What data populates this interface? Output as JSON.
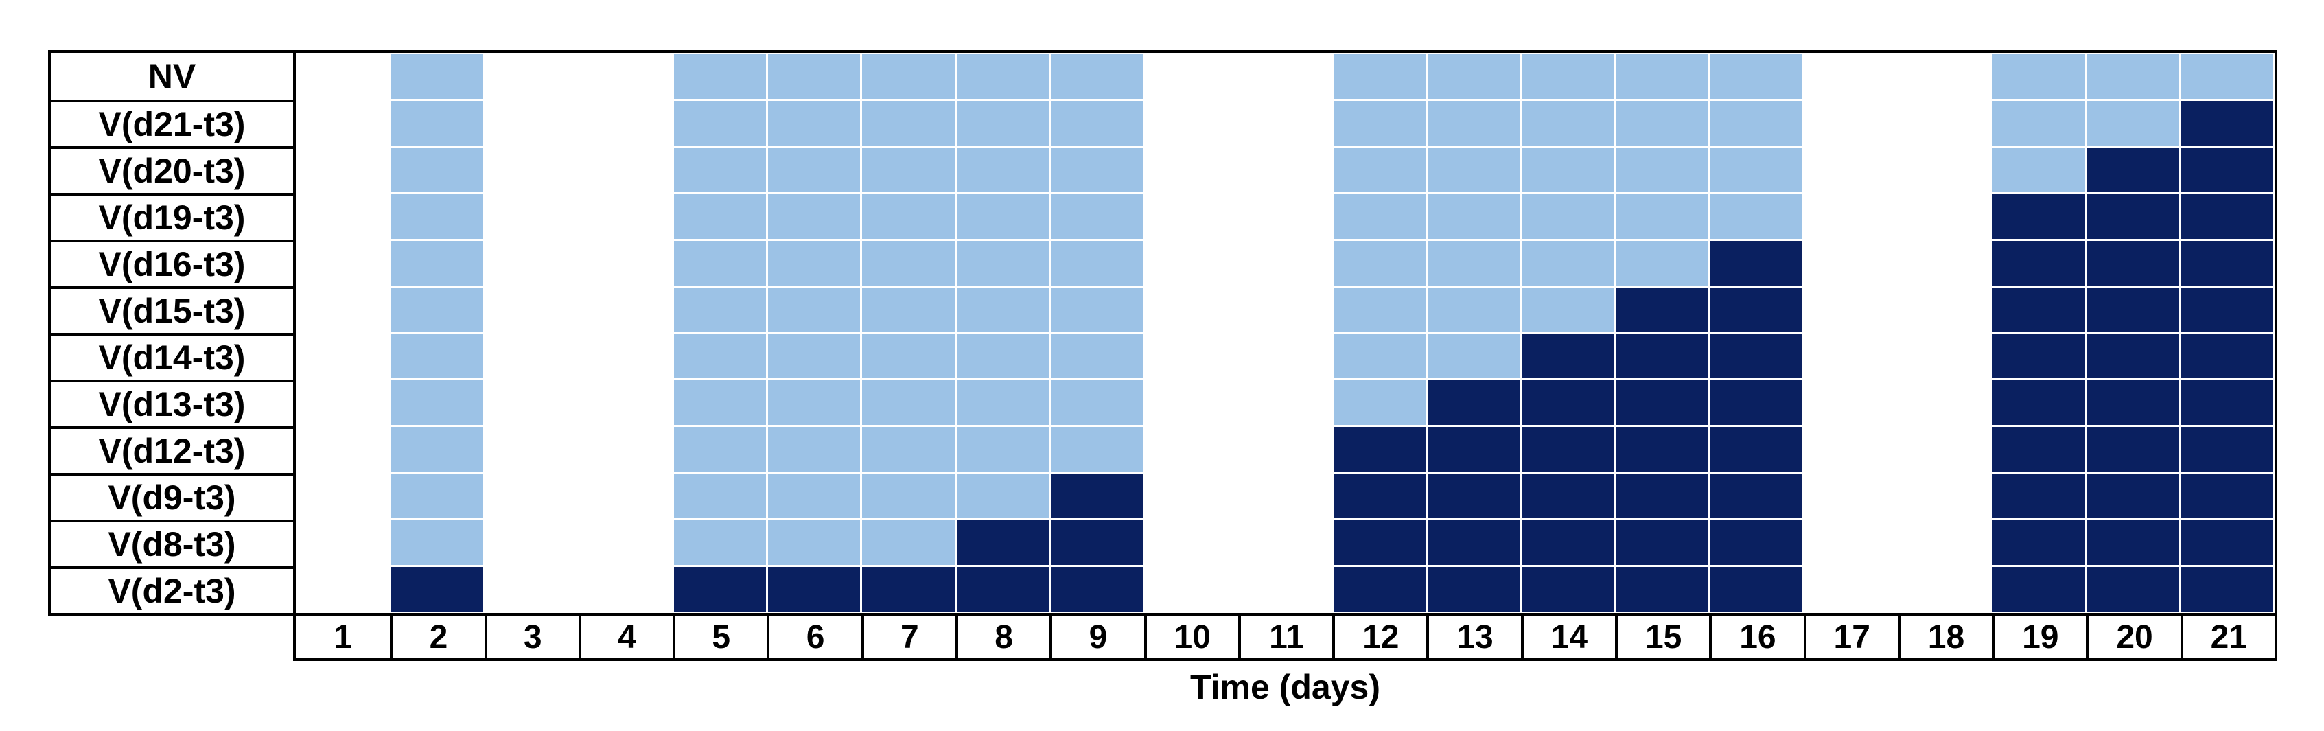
{
  "figure": {
    "colors": {
      "w": "#FFFFFF",
      "l": "#9CC2E6",
      "d": "#0A2060",
      "border": "#000000",
      "gridline": "#FFFFFF"
    }
  },
  "chart_data": {
    "type": "heatmap",
    "title": "",
    "xlabel": "Time (days)",
    "ylabel": "",
    "x": [
      1,
      2,
      3,
      4,
      5,
      6,
      7,
      8,
      9,
      10,
      11,
      12,
      13,
      14,
      15,
      16,
      17,
      18,
      19,
      20,
      21
    ],
    "x_range": [
      1,
      21
    ],
    "grid": "white gridlines between colored cells, black table borders",
    "legend_position": "none",
    "state_codes": {
      "w": "white (no fill)",
      "l": "light blue fill",
      "d": "dark navy fill"
    },
    "colored_days": [
      2,
      5,
      6,
      7,
      8,
      9,
      12,
      13,
      14,
      15,
      16,
      19,
      20,
      21
    ],
    "rows": [
      {
        "label": "NV",
        "states": "wlwwlllllwwlllllwwlll"
      },
      {
        "label": "V(d21-t3)",
        "states": "wlwwlllllwwlllllwwlld"
      },
      {
        "label": "V(d20-t3)",
        "states": "wlwwlllllwwlllllwwldd"
      },
      {
        "label": "V(d19-t3)",
        "states": "wlwwlllllwwlllllwwddd"
      },
      {
        "label": "V(d16-t3)",
        "states": "wlwwlllllwwlllldwwddd"
      },
      {
        "label": "V(d15-t3)",
        "states": "wlwwlllllwwlllddwwddd"
      },
      {
        "label": "V(d14-t3)",
        "states": "wlwwlllllwwlldddwwddd"
      },
      {
        "label": "V(d13-t3)",
        "states": "wlwwlllllwwlddddwwddd"
      },
      {
        "label": "V(d12-t3)",
        "states": "wlwwlllllwwdddddwwddd"
      },
      {
        "label": "V(d9-t3)",
        "states": "wlwwlllldwwdddddwwddd"
      },
      {
        "label": "V(d8-t3)",
        "states": "wlwwlllddwwdddddwwddd"
      },
      {
        "label": "V(d2-t3)",
        "states": "wdwwdddddwwdddddwwddd"
      }
    ]
  }
}
